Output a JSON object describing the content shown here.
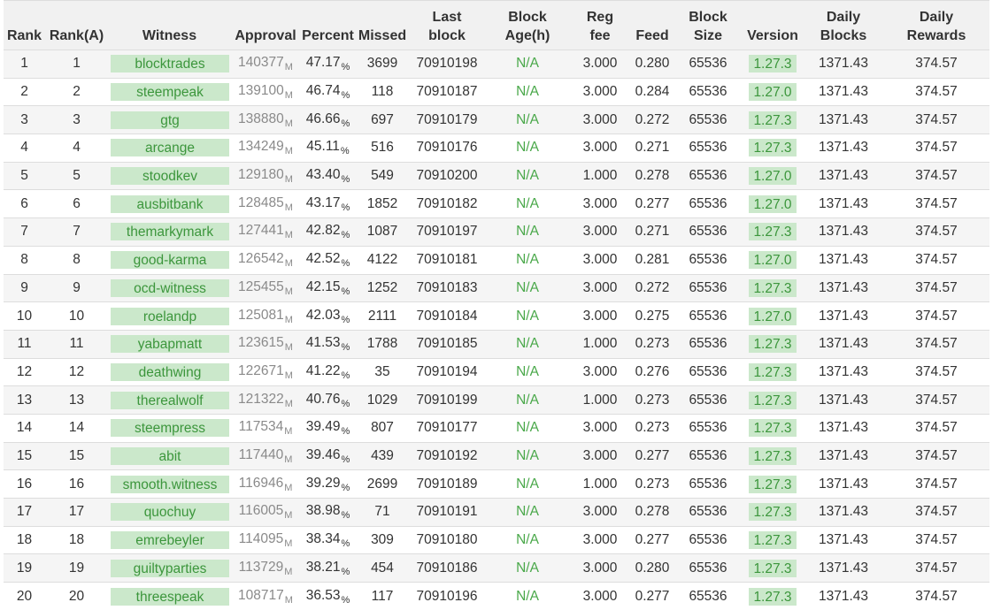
{
  "headers": {
    "rank": "Rank",
    "rank_a": "Rank(A)",
    "witness": "Witness",
    "approval": "Approval",
    "percent": "Percent",
    "missed": "Missed",
    "last_block_1": "Last",
    "last_block_2": "block",
    "block_age_1": "Block",
    "block_age_2": "Age(h)",
    "reg_fee_1": "Reg",
    "reg_fee_2": "fee",
    "feed": "Feed",
    "block_size_1": "Block",
    "block_size_2": "Size",
    "version": "Version",
    "daily_blocks_1": "Daily",
    "daily_blocks_2": "Blocks",
    "daily_rewards_1": "Daily",
    "daily_rewards_2": "Rewards"
  },
  "units": {
    "approval": "M",
    "percent": "%"
  },
  "rows": [
    {
      "rank": "1",
      "rank_a": "1",
      "witness": "blocktrades",
      "approval": "140377",
      "percent": "47.17",
      "missed": "3699",
      "last_block": "70910198",
      "block_age": "N/A",
      "reg_fee": "3.000",
      "feed": "0.280",
      "block_size": "65536",
      "version": "1.27.3",
      "daily_blocks": "1371.43",
      "daily_rewards": "374.57"
    },
    {
      "rank": "2",
      "rank_a": "2",
      "witness": "steempeak",
      "approval": "139100",
      "percent": "46.74",
      "missed": "118",
      "last_block": "70910187",
      "block_age": "N/A",
      "reg_fee": "3.000",
      "feed": "0.284",
      "block_size": "65536",
      "version": "1.27.0",
      "daily_blocks": "1371.43",
      "daily_rewards": "374.57"
    },
    {
      "rank": "3",
      "rank_a": "3",
      "witness": "gtg",
      "approval": "138880",
      "percent": "46.66",
      "missed": "697",
      "last_block": "70910179",
      "block_age": "N/A",
      "reg_fee": "3.000",
      "feed": "0.272",
      "block_size": "65536",
      "version": "1.27.3",
      "daily_blocks": "1371.43",
      "daily_rewards": "374.57"
    },
    {
      "rank": "4",
      "rank_a": "4",
      "witness": "arcange",
      "approval": "134249",
      "percent": "45.11",
      "missed": "516",
      "last_block": "70910176",
      "block_age": "N/A",
      "reg_fee": "3.000",
      "feed": "0.271",
      "block_size": "65536",
      "version": "1.27.3",
      "daily_blocks": "1371.43",
      "daily_rewards": "374.57"
    },
    {
      "rank": "5",
      "rank_a": "5",
      "witness": "stoodkev",
      "approval": "129180",
      "percent": "43.40",
      "missed": "549",
      "last_block": "70910200",
      "block_age": "N/A",
      "reg_fee": "1.000",
      "feed": "0.278",
      "block_size": "65536",
      "version": "1.27.0",
      "daily_blocks": "1371.43",
      "daily_rewards": "374.57"
    },
    {
      "rank": "6",
      "rank_a": "6",
      "witness": "ausbitbank",
      "approval": "128485",
      "percent": "43.17",
      "missed": "1852",
      "last_block": "70910182",
      "block_age": "N/A",
      "reg_fee": "3.000",
      "feed": "0.277",
      "block_size": "65536",
      "version": "1.27.0",
      "daily_blocks": "1371.43",
      "daily_rewards": "374.57"
    },
    {
      "rank": "7",
      "rank_a": "7",
      "witness": "themarkymark",
      "approval": "127441",
      "percent": "42.82",
      "missed": "1087",
      "last_block": "70910197",
      "block_age": "N/A",
      "reg_fee": "3.000",
      "feed": "0.271",
      "block_size": "65536",
      "version": "1.27.3",
      "daily_blocks": "1371.43",
      "daily_rewards": "374.57"
    },
    {
      "rank": "8",
      "rank_a": "8",
      "witness": "good-karma",
      "approval": "126542",
      "percent": "42.52",
      "missed": "4122",
      "last_block": "70910181",
      "block_age": "N/A",
      "reg_fee": "3.000",
      "feed": "0.281",
      "block_size": "65536",
      "version": "1.27.0",
      "daily_blocks": "1371.43",
      "daily_rewards": "374.57"
    },
    {
      "rank": "9",
      "rank_a": "9",
      "witness": "ocd-witness",
      "approval": "125455",
      "percent": "42.15",
      "missed": "1252",
      "last_block": "70910183",
      "block_age": "N/A",
      "reg_fee": "3.000",
      "feed": "0.272",
      "block_size": "65536",
      "version": "1.27.3",
      "daily_blocks": "1371.43",
      "daily_rewards": "374.57"
    },
    {
      "rank": "10",
      "rank_a": "10",
      "witness": "roelandp",
      "approval": "125081",
      "percent": "42.03",
      "missed": "2111",
      "last_block": "70910184",
      "block_age": "N/A",
      "reg_fee": "3.000",
      "feed": "0.275",
      "block_size": "65536",
      "version": "1.27.0",
      "daily_blocks": "1371.43",
      "daily_rewards": "374.57"
    },
    {
      "rank": "11",
      "rank_a": "11",
      "witness": "yabapmatt",
      "approval": "123615",
      "percent": "41.53",
      "missed": "1788",
      "last_block": "70910185",
      "block_age": "N/A",
      "reg_fee": "1.000",
      "feed": "0.273",
      "block_size": "65536",
      "version": "1.27.3",
      "daily_blocks": "1371.43",
      "daily_rewards": "374.57"
    },
    {
      "rank": "12",
      "rank_a": "12",
      "witness": "deathwing",
      "approval": "122671",
      "percent": "41.22",
      "missed": "35",
      "last_block": "70910194",
      "block_age": "N/A",
      "reg_fee": "3.000",
      "feed": "0.276",
      "block_size": "65536",
      "version": "1.27.3",
      "daily_blocks": "1371.43",
      "daily_rewards": "374.57"
    },
    {
      "rank": "13",
      "rank_a": "13",
      "witness": "therealwolf",
      "approval": "121322",
      "percent": "40.76",
      "missed": "1029",
      "last_block": "70910199",
      "block_age": "N/A",
      "reg_fee": "1.000",
      "feed": "0.273",
      "block_size": "65536",
      "version": "1.27.3",
      "daily_blocks": "1371.43",
      "daily_rewards": "374.57"
    },
    {
      "rank": "14",
      "rank_a": "14",
      "witness": "steempress",
      "approval": "117534",
      "percent": "39.49",
      "missed": "807",
      "last_block": "70910177",
      "block_age": "N/A",
      "reg_fee": "3.000",
      "feed": "0.273",
      "block_size": "65536",
      "version": "1.27.3",
      "daily_blocks": "1371.43",
      "daily_rewards": "374.57"
    },
    {
      "rank": "15",
      "rank_a": "15",
      "witness": "abit",
      "approval": "117440",
      "percent": "39.46",
      "missed": "439",
      "last_block": "70910192",
      "block_age": "N/A",
      "reg_fee": "3.000",
      "feed": "0.277",
      "block_size": "65536",
      "version": "1.27.3",
      "daily_blocks": "1371.43",
      "daily_rewards": "374.57"
    },
    {
      "rank": "16",
      "rank_a": "16",
      "witness": "smooth.witness",
      "approval": "116946",
      "percent": "39.29",
      "missed": "2699",
      "last_block": "70910189",
      "block_age": "N/A",
      "reg_fee": "1.000",
      "feed": "0.273",
      "block_size": "65536",
      "version": "1.27.3",
      "daily_blocks": "1371.43",
      "daily_rewards": "374.57"
    },
    {
      "rank": "17",
      "rank_a": "17",
      "witness": "quochuy",
      "approval": "116005",
      "percent": "38.98",
      "missed": "71",
      "last_block": "70910191",
      "block_age": "N/A",
      "reg_fee": "3.000",
      "feed": "0.278",
      "block_size": "65536",
      "version": "1.27.3",
      "daily_blocks": "1371.43",
      "daily_rewards": "374.57"
    },
    {
      "rank": "18",
      "rank_a": "18",
      "witness": "emrebeyler",
      "approval": "114095",
      "percent": "38.34",
      "missed": "309",
      "last_block": "70910180",
      "block_age": "N/A",
      "reg_fee": "3.000",
      "feed": "0.277",
      "block_size": "65536",
      "version": "1.27.3",
      "daily_blocks": "1371.43",
      "daily_rewards": "374.57"
    },
    {
      "rank": "19",
      "rank_a": "19",
      "witness": "guiltyparties",
      "approval": "113729",
      "percent": "38.21",
      "missed": "454",
      "last_block": "70910186",
      "block_age": "N/A",
      "reg_fee": "3.000",
      "feed": "0.280",
      "block_size": "65536",
      "version": "1.27.3",
      "daily_blocks": "1371.43",
      "daily_rewards": "374.57"
    },
    {
      "rank": "20",
      "rank_a": "20",
      "witness": "threespeak",
      "approval": "108717",
      "percent": "36.53",
      "missed": "117",
      "last_block": "70910196",
      "block_age": "N/A",
      "reg_fee": "3.000",
      "feed": "0.277",
      "block_size": "65536",
      "version": "1.27.3",
      "daily_blocks": "1371.43",
      "daily_rewards": "374.57"
    }
  ],
  "colors": {
    "badge_bg": "#cbe8cb",
    "badge_text": "#3c963c",
    "status_text": "#4aa84a",
    "approval_text": "#8a8a8a",
    "stripe_bg": "#f5f5f5",
    "header_bg": "#f1f1f1"
  }
}
